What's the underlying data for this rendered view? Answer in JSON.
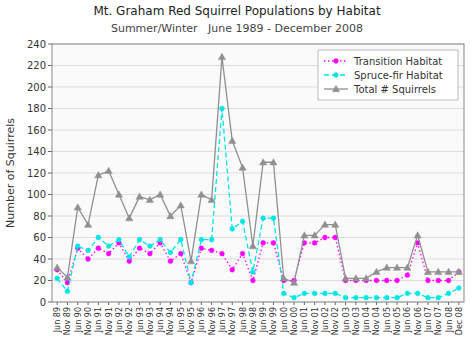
{
  "chart_data": {
    "type": "line",
    "title": "Mt. Graham Red Squirrel Populations by Habitat",
    "subtitle": "Summer/Winter   June 1989 - December 2008",
    "y_label": "Number of Squirrels",
    "ylim": [
      0,
      240
    ],
    "yticks": [
      0,
      20,
      40,
      60,
      80,
      100,
      120,
      140,
      160,
      180,
      200,
      220,
      240
    ],
    "grid": true,
    "legend": "upper right",
    "categories": [
      "Jun 89",
      "Nov 89",
      "Jun 90",
      "Nov 90",
      "Jun 91",
      "Nov 91",
      "Jun 92",
      "Nov 92",
      "Jun 93",
      "Nov 93",
      "Jun 94",
      "Nov 94",
      "Jun 95",
      "Nov 95",
      "Jun 96",
      "Nov 96",
      "Jun 97",
      "Nov 97",
      "Jun 98",
      "Nov 98",
      "Jun 99",
      "Nov 99",
      "Jun 00",
      "Nov 00",
      "Jun 01",
      "Nov 01",
      "Jun 02",
      "Nov 02",
      "Jun 03",
      "Nov 03",
      "Jun 04",
      "Nov 04",
      "Jun 05",
      "Nov 05",
      "Jun 06",
      "Nov 06",
      "Jun 07",
      "Nov 07",
      "Jun 08",
      "Dec 08"
    ],
    "series": [
      {
        "name": "Transition Habitat",
        "color": "#ff00ff",
        "marker": "circle",
        "line_style": "dotted",
        "values": [
          30,
          18,
          50,
          40,
          50,
          45,
          55,
          38,
          50,
          45,
          55,
          38,
          45,
          18,
          50,
          48,
          45,
          30,
          45,
          20,
          55,
          55,
          20,
          20,
          55,
          55,
          60,
          60,
          20,
          20,
          20,
          20,
          20,
          20,
          25,
          55,
          20,
          20,
          20,
          28
        ]
      },
      {
        "name": "Spruce-fir Habitat",
        "color": "#00e5e5",
        "marker": "circle",
        "line_style": "dashed",
        "values": [
          22,
          10,
          52,
          48,
          60,
          52,
          58,
          42,
          58,
          52,
          58,
          46,
          58,
          18,
          58,
          58,
          180,
          68,
          75,
          28,
          78,
          78,
          8,
          4,
          8,
          8,
          8,
          8,
          4,
          4,
          4,
          4,
          4,
          4,
          8,
          8,
          4,
          4,
          8,
          13
        ]
      },
      {
        "name": "Total # Squirrels",
        "color": "#909090",
        "marker": "triangle",
        "line_style": "solid",
        "values": [
          32,
          23,
          88,
          72,
          118,
          122,
          100,
          78,
          98,
          95,
          100,
          80,
          90,
          38,
          100,
          95,
          228,
          150,
          125,
          52,
          130,
          130,
          22,
          18,
          62,
          62,
          72,
          72,
          22,
          22,
          22,
          28,
          32,
          32,
          32,
          62,
          28,
          28,
          28,
          28
        ]
      }
    ]
  }
}
